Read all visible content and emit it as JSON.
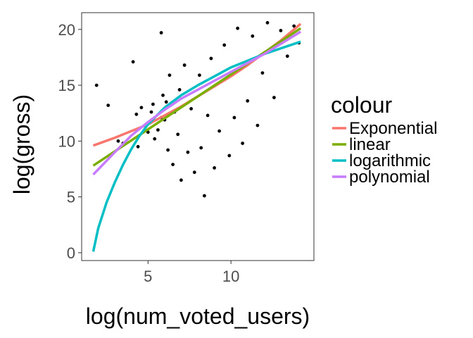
{
  "chart_data": {
    "type": "scatter",
    "xlabel": "log(num_voted_users)",
    "ylabel": "log(gross)",
    "xlim": [
      1.0,
      15.0
    ],
    "ylim": [
      -0.7,
      21.5
    ],
    "xticks": [
      5,
      10
    ],
    "yticks": [
      0,
      5,
      10,
      15,
      20
    ],
    "grid": false,
    "legend": {
      "title": "colour",
      "placement": "right",
      "entries": [
        {
          "label": "Exponential",
          "color": "#F8766D"
        },
        {
          "label": "linear",
          "color": "#7CAE00"
        },
        {
          "label": "logarithmic",
          "color": "#00BFC4"
        },
        {
          "label": "polynomial",
          "color": "#C77CFF"
        }
      ]
    },
    "series": [
      {
        "name": "Exponential",
        "color": "#F8766D",
        "x": [
          1.7,
          3,
          4,
          5,
          6,
          7,
          8,
          9,
          10,
          11,
          12,
          13,
          14.2
        ],
        "y": [
          9.6,
          10.3,
          10.9,
          11.5,
          12.3,
          13.1,
          14,
          14.9,
          15.8,
          16.8,
          17.9,
          19.0,
          20.5
        ]
      },
      {
        "name": "linear",
        "color": "#7CAE00",
        "x": [
          1.7,
          14.2
        ],
        "y": [
          7.8,
          20.1
        ]
      },
      {
        "name": "logarithmic",
        "color": "#00BFC4",
        "x": [
          1.7,
          2,
          2.5,
          3,
          3.5,
          4,
          4.5,
          5,
          6,
          7,
          8,
          9,
          10,
          11,
          12,
          13,
          14.2
        ],
        "y": [
          0.1,
          2.2,
          4.5,
          6.3,
          7.9,
          9.3,
          10.5,
          11.5,
          13.0,
          14.1,
          15.0,
          15.8,
          16.6,
          17.2,
          17.8,
          18.3,
          18.9
        ]
      },
      {
        "name": "polynomial",
        "color": "#C77CFF",
        "x": [
          1.7,
          3,
          4,
          5,
          6,
          7,
          8,
          9,
          10,
          11,
          12,
          13,
          14.2
        ],
        "y": [
          7.0,
          9.0,
          10.5,
          11.7,
          12.8,
          13.8,
          14.6,
          15.4,
          16.2,
          17.0,
          17.8,
          18.7,
          19.8
        ]
      }
    ],
    "points": [
      [
        1.9,
        15.0
      ],
      [
        2.6,
        13.2
      ],
      [
        3.2,
        10.0
      ],
      [
        3.5,
        9.8
      ],
      [
        4.1,
        17.1
      ],
      [
        4.3,
        12.4
      ],
      [
        4.4,
        9.5
      ],
      [
        4.6,
        13.0
      ],
      [
        4.9,
        11.5
      ],
      [
        5.0,
        10.8
      ],
      [
        5.2,
        12.6
      ],
      [
        5.3,
        13.3
      ],
      [
        5.4,
        10.2
      ],
      [
        5.6,
        11.0
      ],
      [
        5.8,
        12.1
      ],
      [
        5.8,
        19.7
      ],
      [
        5.9,
        14.1
      ],
      [
        6.0,
        11.9
      ],
      [
        6.1,
        13.5
      ],
      [
        6.2,
        9.2
      ],
      [
        6.3,
        15.9
      ],
      [
        6.5,
        7.9
      ],
      [
        6.6,
        12.6
      ],
      [
        6.8,
        10.6
      ],
      [
        6.9,
        14.6
      ],
      [
        7.0,
        6.5
      ],
      [
        7.2,
        16.8
      ],
      [
        7.4,
        9.0
      ],
      [
        7.6,
        12.9
      ],
      [
        7.8,
        7.2
      ],
      [
        8.1,
        15.9
      ],
      [
        8.2,
        9.4
      ],
      [
        8.4,
        5.1
      ],
      [
        8.6,
        12.3
      ],
      [
        8.8,
        17.4
      ],
      [
        9.0,
        7.6
      ],
      [
        9.3,
        10.9
      ],
      [
        9.6,
        18.6
      ],
      [
        9.9,
        8.7
      ],
      [
        10.2,
        12.1
      ],
      [
        10.4,
        20.1
      ],
      [
        10.7,
        9.8
      ],
      [
        11.0,
        13.6
      ],
      [
        11.3,
        19.4
      ],
      [
        11.6,
        11.4
      ],
      [
        11.9,
        16.1
      ],
      [
        12.2,
        20.6
      ],
      [
        12.6,
        13.9
      ],
      [
        13.0,
        19.9
      ],
      [
        13.4,
        17.6
      ],
      [
        13.8,
        20.3
      ],
      [
        14.1,
        18.8
      ]
    ]
  }
}
